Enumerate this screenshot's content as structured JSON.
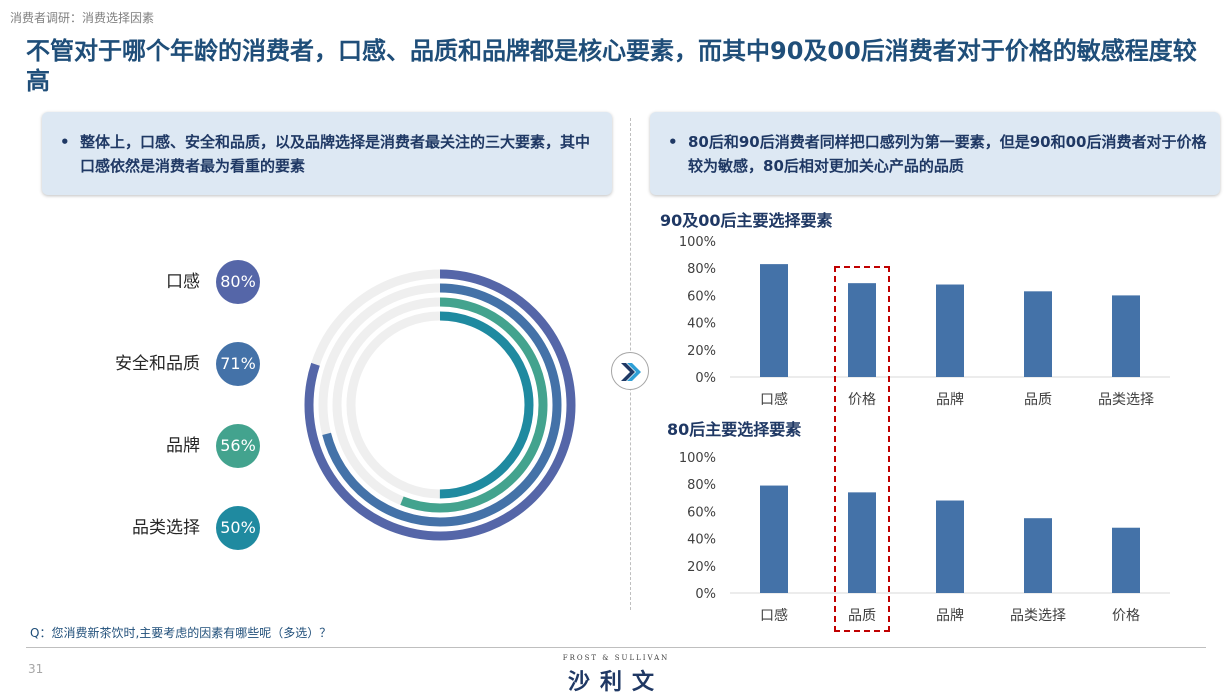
{
  "breadcrumb": "消费者调研：消费选择因素",
  "title": "不管对于哪个年龄的消费者，口感、品质和品牌都是核心要素，而其中90及00后消费者对于价格的敏感程度较高",
  "callout_left": {
    "bullet": "•",
    "text": "整体上，口感、安全和品质，以及品牌选择是消费者最关注的三大要素，其中口感依然是消费者最为看重的要素"
  },
  "callout_right": {
    "bullet": "•",
    "text": "80后和90后消费者同样把口感列为第一要素，但是90和00后消费者对于价格较为敏感，80后相对更加关心产品的品质"
  },
  "arrow_icon": "double-chevron-right-icon",
  "question": "Q：您消费新茶饮时,主要考虑的因素有哪些呢（多选）？",
  "page_number": "31",
  "logo": {
    "top": "FROST & SULLIVAN",
    "main": "沙利文"
  },
  "chart_data": [
    {
      "type": "radial-bar",
      "categories": [
        "口感",
        "安全和品质",
        "品牌",
        "品类选择"
      ],
      "labels": [
        "80%",
        "71%",
        "56%",
        "50%"
      ],
      "values": [
        80,
        71,
        56,
        50
      ],
      "colors": [
        "#5566a8",
        "#4472a8",
        "#43a38e",
        "#1f8aa0"
      ],
      "track_color": "#efefef"
    },
    {
      "type": "bar",
      "title": "90及00后主要选择要素",
      "categories": [
        "口感",
        "价格",
        "品牌",
        "品质",
        "品类选择"
      ],
      "values": [
        83,
        69,
        68,
        63,
        60
      ],
      "yticks": [
        "100%",
        "80%",
        "60%",
        "40%",
        "20%",
        "0%"
      ],
      "ylim": [
        0,
        100
      ],
      "color": "#4472a8",
      "highlight_category": "价格"
    },
    {
      "type": "bar",
      "title": "80后主要选择要素",
      "categories": [
        "口感",
        "品质",
        "品牌",
        "品类选择",
        "价格"
      ],
      "values": [
        79,
        74,
        68,
        55,
        48
      ],
      "yticks": [
        "100%",
        "80%",
        "60%",
        "40%",
        "20%",
        "0%"
      ],
      "ylim": [
        0,
        100
      ],
      "color": "#4472a8",
      "highlight_category": "品质"
    }
  ]
}
